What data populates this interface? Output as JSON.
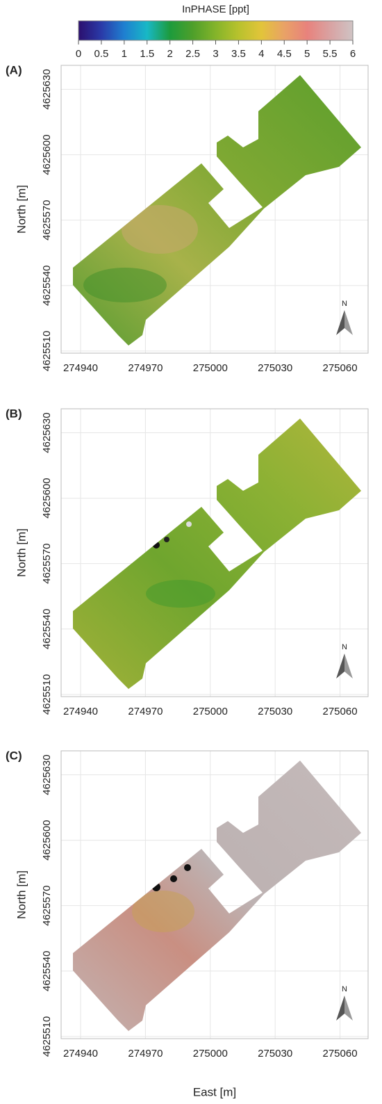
{
  "colorbar": {
    "title": "InPHASE [ppt]",
    "lim": [
      0,
      6
    ],
    "ticks": [
      0,
      0.5,
      1,
      1.5,
      2,
      2.5,
      3,
      3.5,
      4,
      4.5,
      5,
      5.5,
      6
    ],
    "colors": [
      "#2b0f6e",
      "#2a3aa8",
      "#1f7fd0",
      "#18b8c6",
      "#1d9b3c",
      "#4e9f2a",
      "#84b42a",
      "#b8c22d",
      "#e2c43a",
      "#e9a266",
      "#e8827c",
      "#d9a2a2",
      "#cfc3c4"
    ]
  },
  "map": {
    "x_label": "East [m]",
    "y_label": "North [m]",
    "north": "N",
    "xlim": [
      274931,
      275073
    ],
    "ylim": [
      4625509,
      4625641
    ],
    "xticks": [
      274940,
      274970,
      275000,
      275030,
      275060
    ],
    "yticks": [
      4625510,
      4625540,
      4625570,
      4625600,
      4625630
    ],
    "panels": [
      {
        "label": "(A)"
      },
      {
        "label": "(B)"
      },
      {
        "label": "(C)"
      }
    ]
  }
}
